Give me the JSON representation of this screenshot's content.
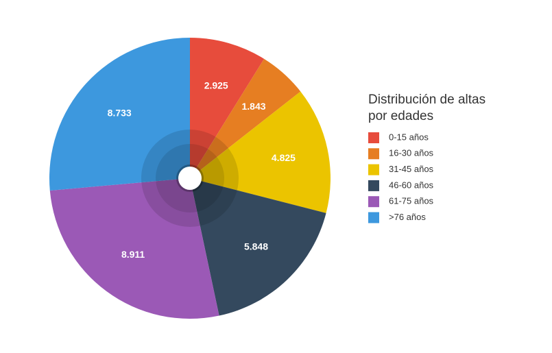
{
  "chart_data": {
    "type": "pie",
    "title": "Distribución de altas por edades",
    "categories": [
      "0-15 años",
      "16-30 años",
      "31-45 años",
      "46-60 años",
      "61-75 años",
      ">76 años"
    ],
    "values": [
      2925,
      1843,
      4825,
      5848,
      8911,
      8733
    ],
    "value_labels": [
      "2.925",
      "1.843",
      "4.825",
      "5.848",
      "8.911",
      "8.733"
    ],
    "colors": [
      "#e74c3c",
      "#e67e22",
      "#ebc400",
      "#34495e",
      "#9b59b6",
      "#3d98de"
    ],
    "legend": "right"
  }
}
